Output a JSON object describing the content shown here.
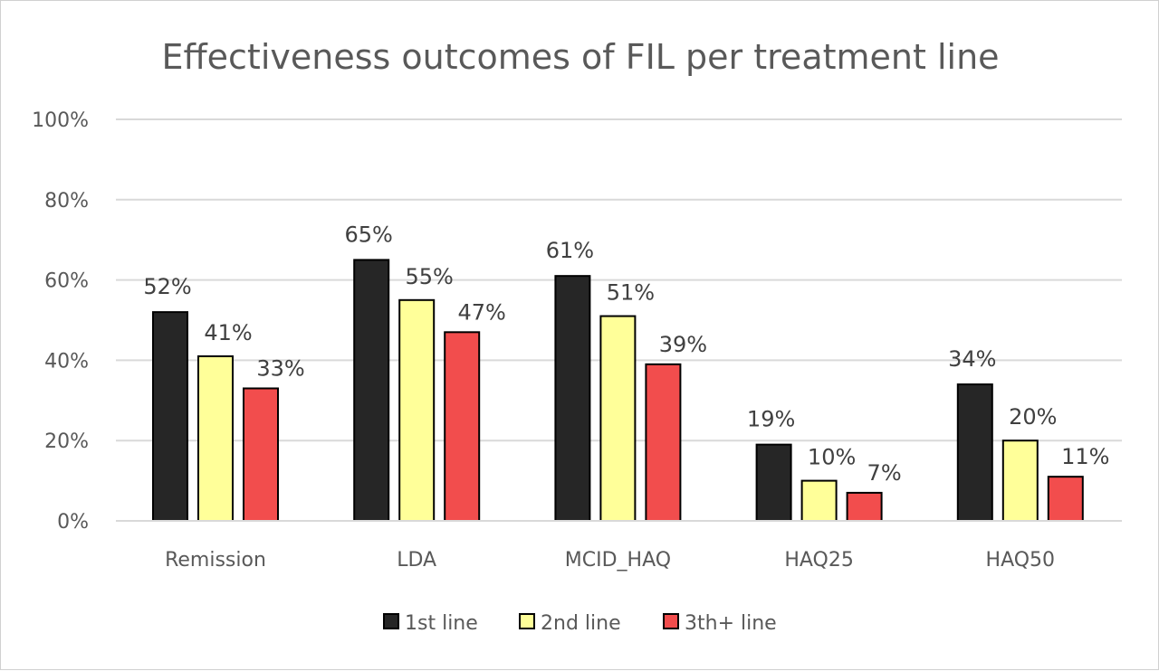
{
  "chart_data": {
    "type": "bar",
    "title": "Effectiveness outcomes of FIL per treatment line",
    "categories": [
      "Remission",
      "LDA",
      "MCID_HAQ",
      "HAQ25",
      "HAQ50"
    ],
    "series": [
      {
        "name": "1st line",
        "color": "#262626",
        "values": [
          52,
          65,
          61,
          19,
          34
        ]
      },
      {
        "name": "2nd line",
        "color": "#ffff99",
        "values": [
          41,
          55,
          51,
          10,
          20
        ]
      },
      {
        "name": "3th+ line",
        "color": "#f24d4d",
        "values": [
          33,
          47,
          39,
          7,
          11
        ]
      }
    ],
    "ylim": [
      0,
      100
    ],
    "yticks": [
      "0%",
      "20%",
      "40%",
      "60%",
      "80%",
      "100%"
    ],
    "value_suffix": "%",
    "grid": true,
    "legend_position": "bottom"
  }
}
